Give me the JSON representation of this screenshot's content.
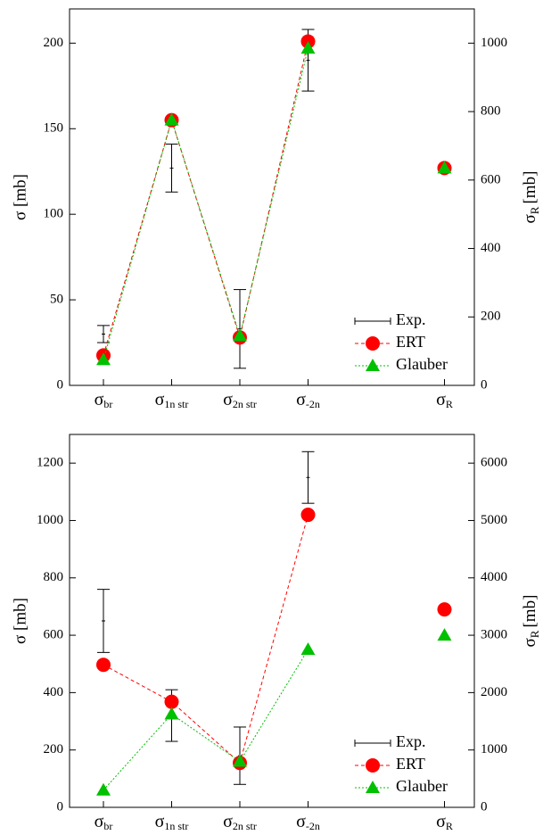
{
  "chart_data": [
    {
      "type": "line",
      "categories": [
        {
          "symbol": "σ",
          "subscript": "br"
        },
        {
          "symbol": "σ",
          "subscript": "1n str"
        },
        {
          "symbol": "σ",
          "subscript": "2n str"
        },
        {
          "symbol": "σ",
          "subscript": "-2n"
        },
        null,
        {
          "symbol": "σ",
          "subscript": "R"
        }
      ],
      "ylabel": "σ [mb]",
      "y2label": {
        "symbol": "σ",
        "subscript": "R",
        "unit": "[mb]"
      },
      "ylim": [
        0,
        220
      ],
      "yticks": [
        0,
        50,
        100,
        150,
        200
      ],
      "y2lim": [
        0,
        1100
      ],
      "y2ticks": [
        0,
        200,
        400,
        600,
        800,
        1000
      ],
      "legend": "lower right",
      "series": [
        {
          "name": "Exp.",
          "color": "#000000",
          "marker": "errorbar",
          "values": [
            30,
            127,
            33,
            190,
            null,
            null
          ],
          "errors": [
            5,
            14,
            23,
            18,
            null,
            null
          ]
        },
        {
          "name": "ERT",
          "color": "#ff0000",
          "marker": "circle",
          "line": "dashed",
          "values": [
            17.5,
            155,
            28,
            201,
            null,
            null
          ],
          "y2_values": [
            null,
            null,
            null,
            null,
            null,
            635
          ]
        },
        {
          "name": "Glauber",
          "color": "#00c000",
          "marker": "triangle",
          "line": "dotted",
          "values": [
            15,
            155,
            29,
            197,
            null,
            null
          ],
          "y2_values": [
            null,
            null,
            null,
            null,
            null,
            635
          ]
        }
      ]
    },
    {
      "type": "line",
      "categories": [
        {
          "symbol": "σ",
          "subscript": "br"
        },
        {
          "symbol": "σ",
          "subscript": "1n str"
        },
        {
          "symbol": "σ",
          "subscript": "2n str"
        },
        {
          "symbol": "σ",
          "subscript": "-2n"
        },
        null,
        {
          "symbol": "σ",
          "subscript": "R"
        }
      ],
      "ylabel": "σ [mb]",
      "y2label": {
        "symbol": "σ",
        "subscript": "R",
        "unit": "[mb]"
      },
      "ylim": [
        0,
        1300
      ],
      "yticks": [
        0,
        200,
        400,
        600,
        800,
        1000,
        1200
      ],
      "y2lim": [
        0,
        6500
      ],
      "y2ticks": [
        0,
        1000,
        2000,
        3000,
        4000,
        5000,
        6000
      ],
      "legend": "lower right",
      "series": [
        {
          "name": "Exp.",
          "color": "#000000",
          "marker": "errorbar",
          "values": [
            650,
            320,
            180,
            1150,
            null,
            null
          ],
          "errors": [
            110,
            90,
            100,
            90,
            null,
            null
          ]
        },
        {
          "name": "ERT",
          "color": "#ff0000",
          "marker": "circle",
          "line": "dashed",
          "values": [
            497,
            368,
            155,
            1020,
            null,
            null
          ],
          "y2_values": [
            null,
            null,
            null,
            null,
            null,
            3450
          ]
        },
        {
          "name": "Glauber",
          "color": "#00c000",
          "marker": "triangle",
          "line": "dotted",
          "values": [
            60,
            325,
            160,
            550,
            null,
            null
          ],
          "y2_values": [
            null,
            null,
            null,
            null,
            null,
            3000
          ]
        }
      ]
    }
  ]
}
